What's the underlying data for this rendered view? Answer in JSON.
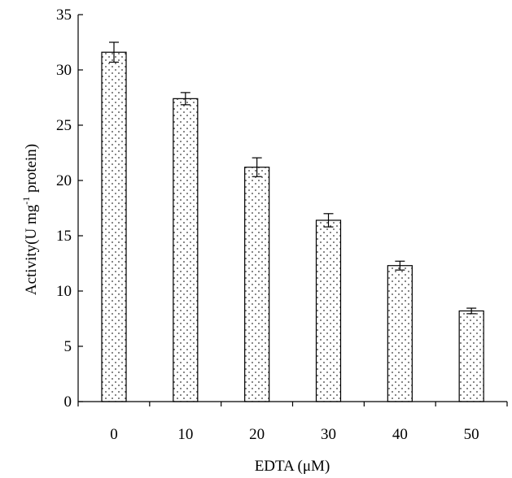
{
  "chart_data": {
    "type": "bar",
    "categories": [
      "0",
      "10",
      "20",
      "30",
      "40",
      "50"
    ],
    "values": [
      31.6,
      27.4,
      21.2,
      16.4,
      12.3,
      8.2
    ],
    "errors": [
      0.9,
      0.55,
      0.85,
      0.6,
      0.4,
      0.25
    ],
    "ylim": [
      0,
      35
    ],
    "yticks": [
      "0",
      "5",
      "10",
      "15",
      "20",
      "25",
      "30",
      "35"
    ],
    "xlabel": "EDTA (μM)",
    "ylabel_main": "Activity(U mg",
    "ylabel_sup": "-1",
    "ylabel_tail": " protein)",
    "bar_fill": "dotted",
    "grid": false
  }
}
